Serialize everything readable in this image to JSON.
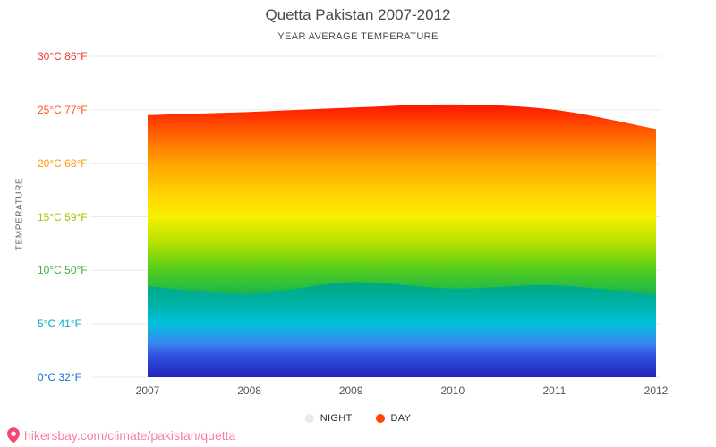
{
  "header": {
    "title": "Quetta Pakistan 2007-2012",
    "subtitle": "YEAR AVERAGE TEMPERATURE"
  },
  "axis": {
    "y_title": "TEMPERATURE",
    "y_labels": [
      {
        "label": "30°C 86°F",
        "temp_c": 30,
        "color": "#e53935"
      },
      {
        "label": "25°C 77°F",
        "temp_c": 25,
        "color": "#ff5722"
      },
      {
        "label": "20°C 68°F",
        "temp_c": 20,
        "color": "#ff9800"
      },
      {
        "label": "15°C 59°F",
        "temp_c": 15,
        "color": "#a4c400"
      },
      {
        "label": "10°C 50°F",
        "temp_c": 10,
        "color": "#3cb043"
      },
      {
        "label": "5°C 41°F",
        "temp_c": 5,
        "color": "#00acc1"
      },
      {
        "label": "0°C 32°F",
        "temp_c": 0,
        "color": "#1a6fd4"
      }
    ],
    "x_labels": [
      "2007",
      "2008",
      "2009",
      "2010",
      "2011",
      "2012"
    ]
  },
  "legend": [
    {
      "label": "NIGHT",
      "color": "#ece9e6"
    },
    {
      "label": "DAY",
      "color": "#fe4502"
    }
  ],
  "footer": {
    "link": "hikersbay.com/climate/pakistan/quetta",
    "link_color": "#f87fa0",
    "pin_color": "#f4476f"
  },
  "chart_data": {
    "type": "area",
    "title": "Quetta Pakistan 2007-2012",
    "subtitle": "YEAR AVERAGE TEMPERATURE",
    "categories": [
      2007,
      2008,
      2009,
      2010,
      2011,
      2012
    ],
    "series": [
      {
        "name": "DAY",
        "values": [
          24.5,
          24.8,
          25.2,
          25.5,
          25.0,
          23.2
        ]
      },
      {
        "name": "NIGHT",
        "values": [
          8.5,
          7.8,
          8.9,
          8.3,
          8.6,
          7.7
        ]
      }
    ],
    "xlabel": "",
    "ylabel": "TEMPERATURE",
    "ylim": [
      0,
      30
    ],
    "y_ticks_c": [
      0,
      5,
      10,
      15,
      20,
      25,
      30
    ],
    "y_ticks_f": [
      32,
      41,
      50,
      59,
      68,
      77,
      86
    ],
    "grid": true,
    "legend_position": "bottom",
    "gradients": {
      "day": [
        {
          "t": 26,
          "color": "#ff0800"
        },
        {
          "t": 23,
          "color": "#ff5a00"
        },
        {
          "t": 20,
          "color": "#ffa400"
        },
        {
          "t": 17,
          "color": "#ffd400"
        },
        {
          "t": 15,
          "color": "#f6ef00"
        },
        {
          "t": 12.5,
          "color": "#b4e000"
        },
        {
          "t": 10,
          "color": "#52cc1e"
        },
        {
          "t": 8,
          "color": "#21b84a"
        },
        {
          "t": 6.5,
          "color": "#00b090"
        },
        {
          "t": 5,
          "color": "#00bcd0"
        },
        {
          "t": 3,
          "color": "#2e7ce8"
        },
        {
          "t": 1.5,
          "color": "#2b4ad0"
        },
        {
          "t": 0,
          "color": "#2222b4"
        }
      ],
      "night": [
        {
          "t": 9,
          "color": "#00a87a"
        },
        {
          "t": 6.8,
          "color": "#00b2a8"
        },
        {
          "t": 5,
          "color": "#00c0dc"
        },
        {
          "t": 3.2,
          "color": "#3b86f0"
        },
        {
          "t": 2,
          "color": "#3052dd"
        },
        {
          "t": 0,
          "color": "#2323bb"
        }
      ]
    }
  }
}
